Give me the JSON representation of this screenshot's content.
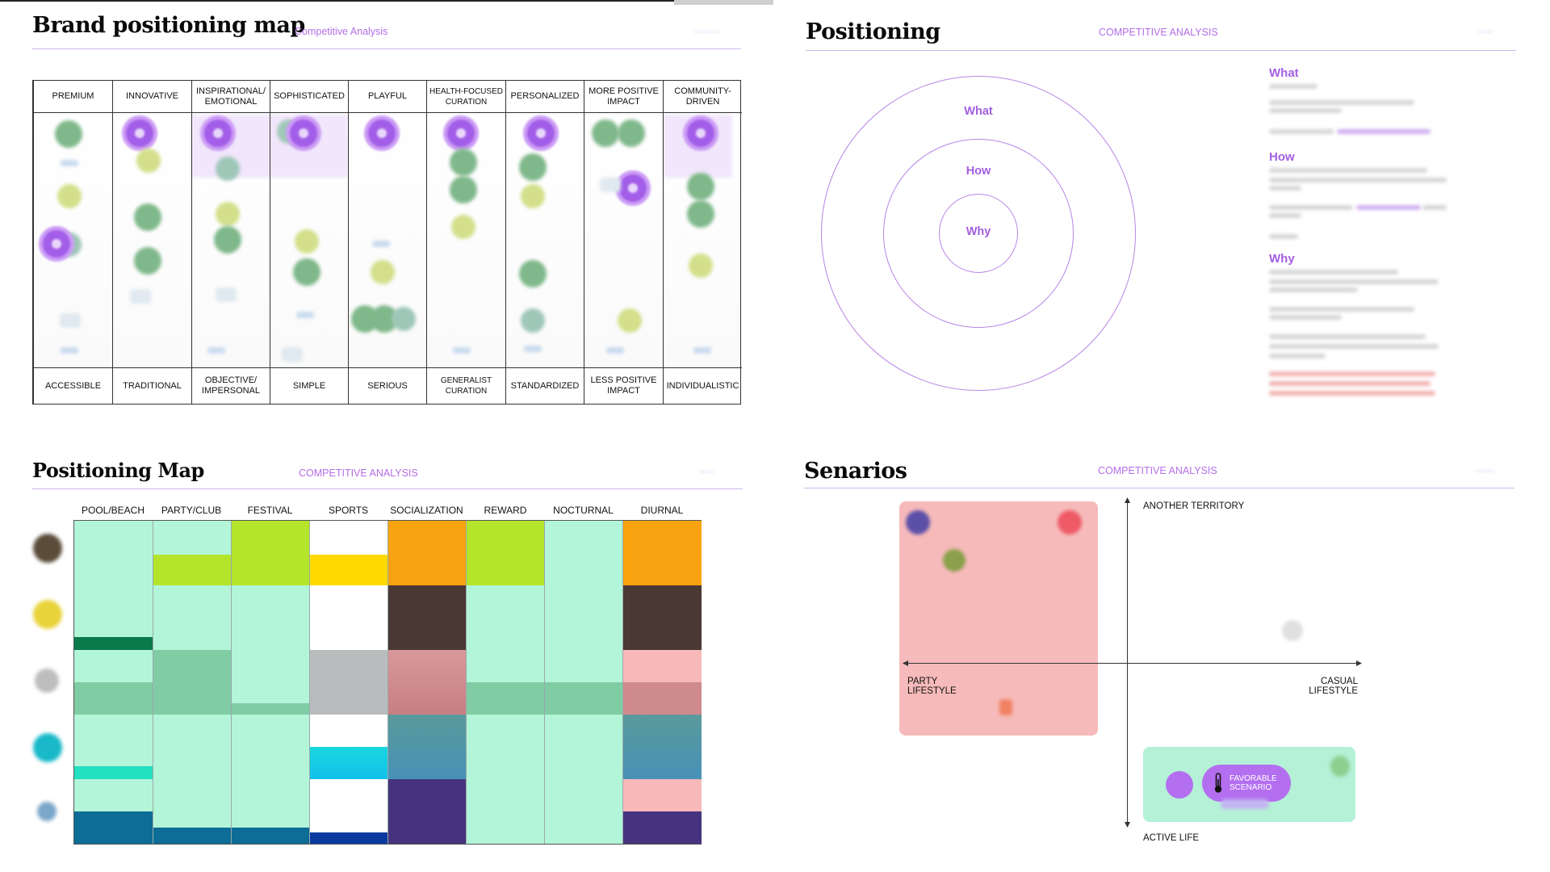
{
  "panel1": {
    "title": "Brand positioning map",
    "subtitle": "Competitive Analysis",
    "columns": [
      {
        "top": "PREMIUM",
        "bottom": "ACCESSIBLE"
      },
      {
        "top": "INNOVATIVE",
        "bottom": "TRADITIONAL"
      },
      {
        "top": "INSPIRATIONAL/ EMOTIONAL",
        "bottom": "OBJECTIVE/ IMPERSONAL"
      },
      {
        "top": "SOPHISTICATED",
        "bottom": "SIMPLE"
      },
      {
        "top": "PLAYFUL",
        "bottom": "SERIOUS"
      },
      {
        "top": "HEALTH-FOCUSED CURATION",
        "bottom": "GENERALIST CURATION"
      },
      {
        "top": "PERSONALIZED",
        "bottom": "STANDARDIZED"
      },
      {
        "top": "MORE POSITIVE IMPACT",
        "bottom": "LESS POSITIVE IMPACT"
      },
      {
        "top": "COMMUNITY-DRIVEN",
        "bottom": "INDIVIDUALISTIC"
      }
    ]
  },
  "panel2": {
    "title": "Positioning",
    "subtitle": "COMPETITIVE ANALYSIS",
    "rings": {
      "outer": "What",
      "middle": "How",
      "inner": "Why"
    },
    "side": {
      "what": "What",
      "how": "How",
      "why": "Why"
    }
  },
  "panel3": {
    "title": "Positioning Map",
    "subtitle": "COMPETITIVE ANALYSIS",
    "columns": [
      "POOL/BEACH",
      "PARTY/CLUB",
      "FESTIVAL",
      "SPORTS",
      "SOCIALIZATION",
      "REWARD",
      "NOCTURNAL",
      "DIURNAL"
    ],
    "row_icon_colors": [
      "#5b4c3a",
      "#e9d33a",
      "#bdbdbd",
      "#19b9c9",
      "#7aa6c9"
    ],
    "colors": {
      "mint": "#b3f5d8",
      "lime": "#b5e52a",
      "yellow": "#ffd900",
      "orange": "#f8a30f",
      "brown": "#4a3833",
      "pink": "#f6b8b8",
      "rose": "#cf8a8e",
      "grey": "#b9bcbd",
      "teal": "#5a9a9a",
      "cyan": "#19d8e0",
      "purple": "#46337f",
      "blue": "#0d6d96",
      "darkgreen": "#0b7a4a",
      "sage": "#80cca4",
      "aqua": "#22e0c0",
      "navy": "#0a3aa0"
    }
  },
  "panel4": {
    "title": "Senarios",
    "subtitle": "COMPETITIVE ANALYSIS",
    "axes": {
      "top": "ANOTHER TERRITORY",
      "bottom": "ACTIVE LIFE",
      "left": "PARTY\nLIFESTYLE",
      "right": "CASUAL\nLIFESTYLE"
    },
    "favorable": "FAVORABLE\nSCENARIO"
  }
}
